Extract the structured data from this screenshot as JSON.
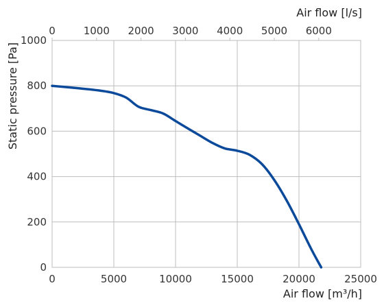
{
  "chart_data": {
    "type": "line",
    "title": "",
    "xlabel": "Air flow [m³/h]",
    "x2label": "Air flow [l/s]",
    "ylabel": "Static pressure [Pa]",
    "xlim": [
      0,
      25000
    ],
    "x2lim": [
      0,
      6944.44
    ],
    "ylim": [
      0,
      1000
    ],
    "x_ticks": [
      0,
      5000,
      10000,
      15000,
      20000,
      25000
    ],
    "x2_ticks": [
      0,
      1000,
      2000,
      3000,
      4000,
      5000,
      6000
    ],
    "y_ticks": [
      0,
      200,
      400,
      600,
      800,
      1000
    ],
    "grid": true,
    "color": "#0b4a9a",
    "series": [
      {
        "x": [
          0,
          2000,
          4000,
          5000,
          6000,
          7000,
          8000,
          9000,
          10000,
          11000,
          12000,
          13000,
          14000,
          15000,
          16000,
          17000,
          18000,
          19000,
          20000,
          21000,
          21800
        ],
        "y": [
          800,
          790,
          778,
          768,
          748,
          708,
          693,
          678,
          645,
          612,
          580,
          548,
          524,
          514,
          496,
          455,
          385,
          295,
          190,
          80,
          0
        ]
      }
    ]
  }
}
